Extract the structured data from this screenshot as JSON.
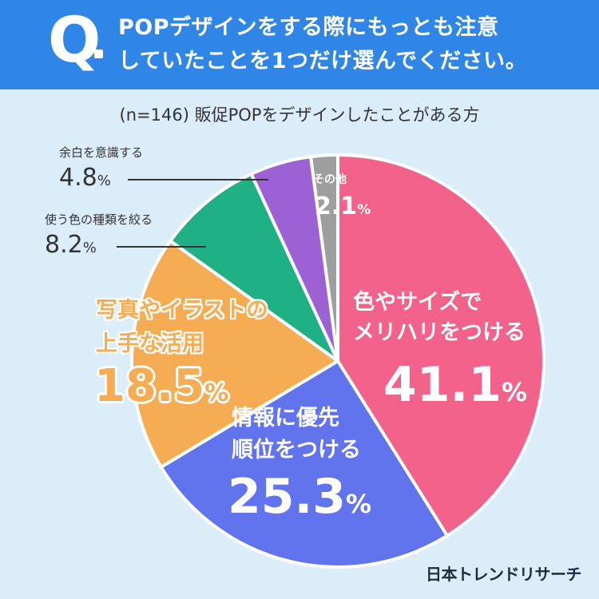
{
  "header": {
    "q_mark": "Q",
    "question_line1": "POPデザインをする際にもっとも注意",
    "question_line2": "していたことを1つだけ選んでください。"
  },
  "subtitle": "(n=146) 販促POPをデザインしたことがある方",
  "chart_data": {
    "type": "pie",
    "subtitle": "(n=146) 販促POPをデザインしたことがある方",
    "unit": "%",
    "slices": [
      {
        "label": "色やサイズでメリハリをつける",
        "label_line1": "色やサイズで",
        "label_line2": "メリハリをつける",
        "value": 41.1,
        "value_text": "41.1",
        "color": "#f2628a"
      },
      {
        "label": "情報に優先順位をつける",
        "label_line1": "情報に優先",
        "label_line2": "順位をつける",
        "value": 25.3,
        "value_text": "25.3",
        "color": "#6174ee"
      },
      {
        "label": "写真やイラストの上手な活用",
        "label_line1": "写真やイラストの",
        "label_line2": "上手な活用",
        "value": 18.5,
        "value_text": "18.5",
        "color": "#f5ac52"
      },
      {
        "label": "使う色の種類を絞る",
        "value": 8.2,
        "value_text": "8.2",
        "color": "#1fb083"
      },
      {
        "label": "余白を意識する",
        "value": 4.8,
        "value_text": "4.8",
        "color": "#9c62d3"
      },
      {
        "label": "その他",
        "value": 2.1,
        "value_text": "2.1",
        "color": "#9e9e9e"
      }
    ]
  },
  "label_colors": {
    "accent_orange": "#f5ac52"
  },
  "logo": "日本トレンドリサーチ"
}
